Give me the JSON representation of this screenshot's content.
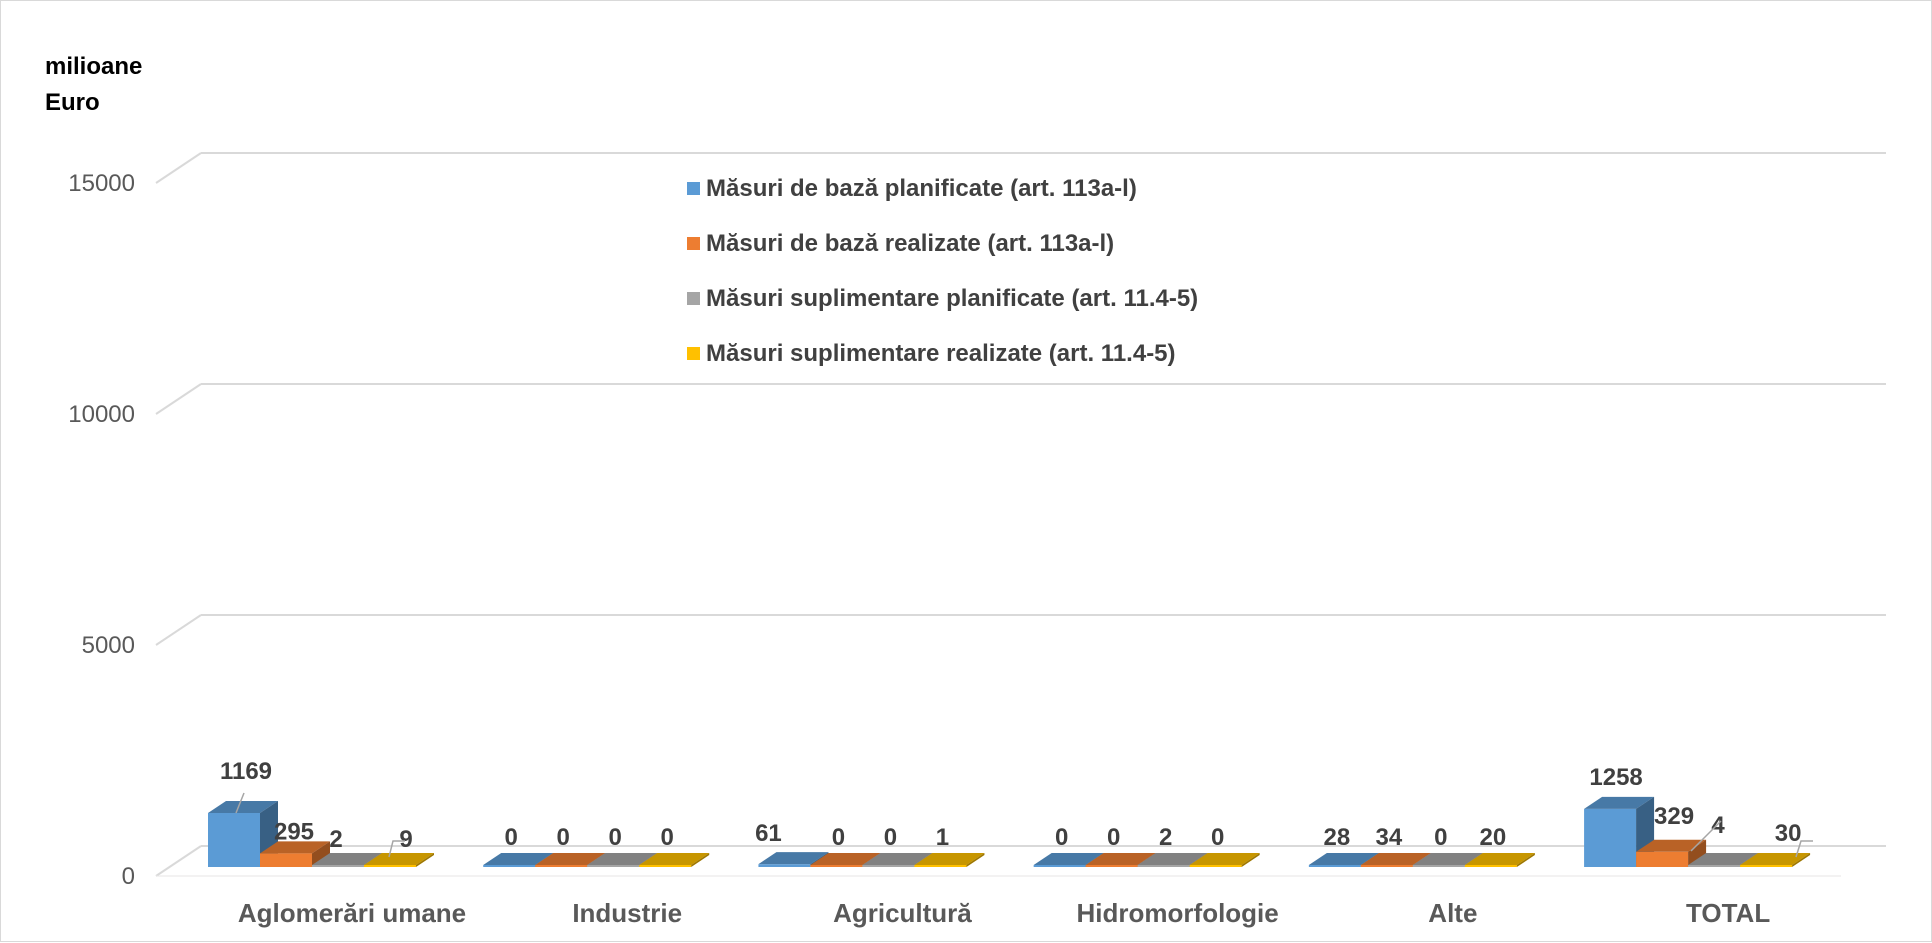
{
  "chart_data": {
    "type": "bar",
    "style": "3d-clustered-column",
    "unit_label_lines": [
      "milioane",
      "Euro"
    ],
    "categories": [
      "Aglomerări umane",
      "Industrie",
      "Agricultură",
      "Hidromorfologie",
      "Alte",
      "TOTAL"
    ],
    "series": [
      {
        "name": "Măsuri de bază planificate  (art. 113a-l)",
        "color": "#5b9bd5",
        "values": [
          1169,
          0,
          61,
          0,
          28,
          1258
        ]
      },
      {
        "name": "Măsuri de bază realizate (art. 113a-l)",
        "color": "#ed7d31",
        "values": [
          295,
          0,
          0,
          0,
          34,
          329
        ]
      },
      {
        "name": "Măsuri suplimentare planificate (art. 11.4-5)",
        "color": "#a5a5a5",
        "values": [
          2,
          0,
          0,
          2,
          0,
          4
        ]
      },
      {
        "name": "Măsuri suplimentare realizate (art. 11.4-5)",
        "color": "#ffc000",
        "values": [
          9,
          0,
          1,
          0,
          20,
          30
        ]
      }
    ],
    "data_labels": [
      [
        "1169",
        "295",
        "2",
        "9"
      ],
      [
        "0",
        "0",
        "0",
        "0"
      ],
      [
        "61",
        "0",
        "0",
        "1"
      ],
      [
        "0",
        "0",
        "2",
        "0"
      ],
      [
        "28",
        "34",
        "0",
        "20"
      ],
      [
        "1258",
        "329",
        "4",
        "30"
      ]
    ],
    "y_ticks": [
      "0",
      "5000",
      "10000",
      "15000"
    ],
    "ylim": [
      0,
      15000
    ],
    "grid": true,
    "legend_position": "top-center"
  }
}
